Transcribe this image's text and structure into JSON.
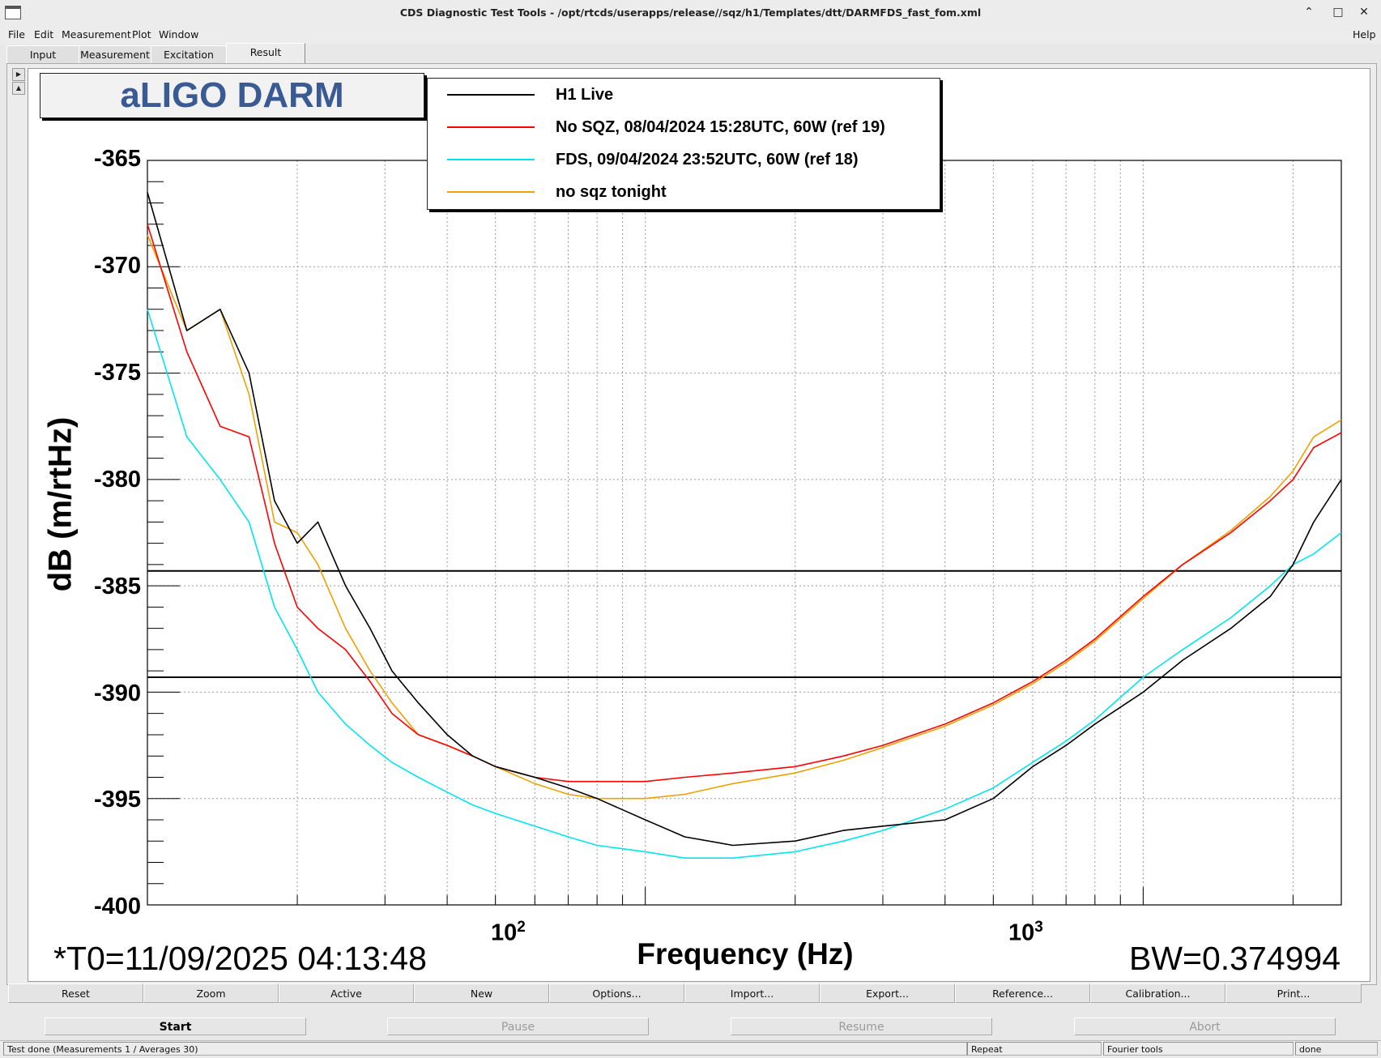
{
  "window": {
    "title": "CDS Diagnostic Test Tools - /opt/rtcds/userapps/release//sqz/h1/Templates/dtt/DARMFDS_fast_fom.xml",
    "controls": [
      "minimize-icon",
      "maximize-icon",
      "close-icon"
    ]
  },
  "menu": {
    "file": "File",
    "edit": "Edit",
    "measurement": "Measurement",
    "plot": "Plot",
    "window": "Window",
    "help": "Help"
  },
  "tabs": [
    "Input",
    "Measurement",
    "Excitation",
    "Result"
  ],
  "active_tab": "Result",
  "plot_title": "aLIGO DARM",
  "legend": [
    {
      "label": "H1 Live",
      "color": "#000000"
    },
    {
      "label": "No SQZ, 08/04/2024 15:28UTC, 60W (ref 19)",
      "color": "#ff0000"
    },
    {
      "label": "FDS, 09/04/2024 23:52UTC, 60W (ref 18)",
      "color": "#00e5f0"
    },
    {
      "label": "no sqz tonight",
      "color": "#f0a000"
    }
  ],
  "footer": {
    "t0": "*T0=11/09/2025 04:13:48",
    "bw": "BW=0.374994"
  },
  "chart_data": {
    "type": "line",
    "xlabel": "Frequency (Hz)",
    "ylabel": "dB (m/rtHz)",
    "x_scale": "log",
    "xlim": [
      10,
      2500
    ],
    "ylim": [
      -400,
      -365
    ],
    "y_ticks": [
      "-365",
      "-370",
      "-375",
      "-380",
      "-385",
      "-390",
      "-395",
      "-400"
    ],
    "x_tick_labels": [
      {
        "base": "10",
        "exp": "2"
      },
      {
        "base": "10",
        "exp": "3"
      }
    ],
    "grid": true,
    "horizontal_lines": [
      -384.3,
      -389.3
    ],
    "series": [
      {
        "name": "H1 Live",
        "color": "#000000",
        "x": [
          10,
          12,
          14,
          16,
          18,
          20,
          22,
          25,
          28,
          31,
          35,
          40,
          45,
          50,
          60,
          70,
          80,
          100,
          120,
          150,
          200,
          250,
          300,
          400,
          500,
          600,
          700,
          800,
          1000,
          1200,
          1500,
          1800,
          2000,
          2200,
          2500
        ],
        "y": [
          -366.5,
          -373,
          -372,
          -375,
          -381,
          -383,
          -382,
          -385,
          -387,
          -389,
          -390.5,
          -392,
          -393,
          -393.5,
          -394,
          -394.5,
          -395,
          -396,
          -396.8,
          -397.2,
          -397,
          -396.5,
          -396.3,
          -396,
          -395,
          -393.5,
          -392.5,
          -391.5,
          -390,
          -388.5,
          -387,
          -385.5,
          -384,
          -382,
          -380
        ]
      },
      {
        "name": "No SQZ, 08/04/2024 15:28UTC, 60W (ref 19)",
        "color": "#ff0000",
        "x": [
          10,
          12,
          14,
          16,
          18,
          20,
          22,
          25,
          28,
          31,
          35,
          40,
          45,
          50,
          60,
          70,
          80,
          100,
          120,
          150,
          200,
          250,
          300,
          400,
          500,
          600,
          700,
          800,
          1000,
          1200,
          1500,
          1800,
          2000,
          2200,
          2500
        ],
        "y": [
          -368,
          -374,
          -377.5,
          -378,
          -383,
          -386,
          -387,
          -388,
          -389.5,
          -391,
          -392,
          -392.5,
          -393,
          -393.5,
          -394,
          -394.2,
          -394.2,
          -394.2,
          -394,
          -393.8,
          -393.5,
          -393,
          -392.5,
          -391.5,
          -390.5,
          -389.5,
          -388.5,
          -387.5,
          -385.5,
          -384,
          -382.5,
          -381,
          -380,
          -378.5,
          -377.8
        ]
      },
      {
        "name": "FDS, 09/04/2024 23:52UTC, 60W (ref 18)",
        "color": "#00e5f0",
        "x": [
          10,
          12,
          14,
          16,
          18,
          20,
          22,
          25,
          28,
          31,
          35,
          40,
          45,
          50,
          60,
          70,
          80,
          100,
          120,
          150,
          200,
          250,
          300,
          400,
          500,
          600,
          700,
          800,
          1000,
          1200,
          1500,
          1800,
          2000,
          2200,
          2500
        ],
        "y": [
          -372,
          -378,
          -380,
          -382,
          -386,
          -388,
          -390,
          -391.5,
          -392.5,
          -393.3,
          -394,
          -394.7,
          -395.3,
          -395.7,
          -396.3,
          -396.8,
          -397.2,
          -397.5,
          -397.8,
          -397.8,
          -397.5,
          -397,
          -396.5,
          -395.5,
          -394.5,
          -393.3,
          -392.3,
          -391.3,
          -389.3,
          -388,
          -386.5,
          -385,
          -384,
          -383.5,
          -382.5
        ]
      },
      {
        "name": "no sqz tonight",
        "color": "#f0a000",
        "x": [
          10,
          12,
          14,
          16,
          18,
          20,
          22,
          25,
          28,
          31,
          35,
          40,
          45,
          50,
          60,
          70,
          80,
          100,
          120,
          150,
          200,
          250,
          300,
          400,
          500,
          600,
          700,
          800,
          1000,
          1200,
          1500,
          1800,
          2000,
          2200,
          2500
        ],
        "y": [
          -368.5,
          -373,
          -372,
          -376,
          -382,
          -382.5,
          -384,
          -387,
          -389,
          -390.5,
          -392,
          -392.5,
          -393,
          -393.5,
          -394.3,
          -394.8,
          -395,
          -395,
          -394.8,
          -394.3,
          -393.8,
          -393.2,
          -392.6,
          -391.6,
          -390.6,
          -389.6,
          -388.6,
          -387.6,
          -385.6,
          -384,
          -382.4,
          -380.8,
          -379.6,
          -378,
          -377.2
        ]
      }
    ]
  },
  "buttons": [
    "Reset",
    "Zoom",
    "Active",
    "New",
    "Options...",
    "Import...",
    "Export...",
    "Reference...",
    "Calibration...",
    "Print..."
  ],
  "controls": [
    "Start",
    "Pause",
    "Resume",
    "Abort"
  ],
  "status": {
    "message": "Test done (Measurements 1 / Averages 30)",
    "repeat": "Repeat",
    "mode": "Fourier tools",
    "state": "done"
  }
}
